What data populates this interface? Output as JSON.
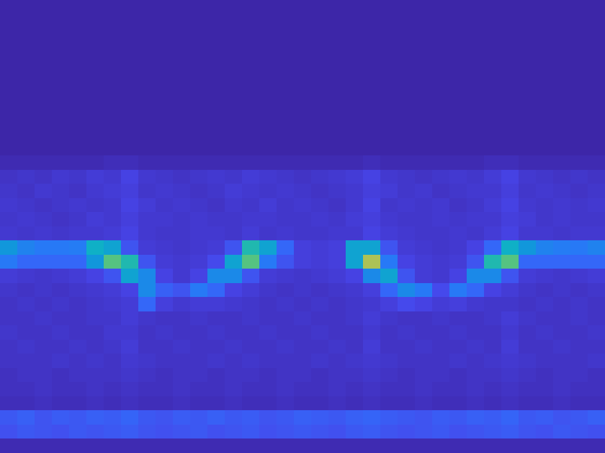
{
  "chart_data": {
    "type": "heatmap",
    "tick_labels": false,
    "zlim": [
      1,
      10
    ],
    "cells": [
      [
        1,
        1,
        1,
        1,
        1,
        1,
        1,
        1,
        1,
        1,
        1,
        1,
        1,
        1,
        1,
        1,
        1,
        1,
        1,
        1,
        1,
        1,
        1,
        1,
        1,
        1,
        1,
        1,
        1,
        1,
        1,
        1,
        1,
        1,
        1
      ],
      [
        1,
        1,
        1,
        1,
        1,
        1,
        1,
        1,
        1,
        1,
        1,
        1,
        1,
        1,
        1,
        1,
        1,
        1,
        1,
        1,
        1,
        1,
        1,
        1,
        1,
        1,
        1,
        1,
        1,
        1,
        1,
        1,
        1,
        1,
        1
      ],
      [
        1,
        1,
        1,
        1,
        1,
        1,
        1,
        1,
        1,
        1,
        1,
        1,
        1,
        1,
        1,
        1,
        1,
        1,
        1,
        1,
        1,
        1,
        1,
        1,
        1,
        1,
        1,
        1,
        1,
        1,
        1,
        1,
        1,
        1,
        1
      ],
      [
        1,
        1,
        1,
        1,
        1,
        1,
        1,
        1,
        1,
        1,
        1,
        1,
        1,
        1,
        1,
        1,
        1,
        1,
        1,
        1,
        1,
        1,
        1,
        1,
        1,
        1,
        1,
        1,
        1,
        1,
        1,
        1,
        1,
        1,
        1
      ],
      [
        1,
        1,
        1,
        1,
        1,
        1,
        1,
        1,
        1,
        1,
        1,
        1,
        1,
        1,
        1,
        1,
        1,
        1,
        1,
        1,
        1,
        1,
        1,
        1,
        1,
        1,
        1,
        1,
        1,
        1,
        1,
        1,
        1,
        1,
        1
      ],
      [
        1,
        1,
        1,
        1,
        1,
        1,
        1,
        1,
        1,
        1,
        1,
        1,
        1,
        1,
        1,
        1,
        1,
        1,
        1,
        1,
        1,
        1,
        1,
        1,
        1,
        1,
        1,
        1,
        1,
        1,
        1,
        1,
        1,
        1,
        1
      ],
      [
        1,
        1,
        1,
        1,
        1,
        1,
        1,
        1,
        1,
        1,
        1,
        1,
        1,
        1,
        1,
        1,
        1,
        1,
        1,
        1,
        1,
        1,
        1,
        1,
        1,
        1,
        1,
        1,
        1,
        1,
        1,
        1,
        1,
        1,
        1
      ],
      [
        1,
        1,
        1,
        1,
        1,
        1,
        1,
        1,
        1,
        1,
        1,
        1,
        1,
        1,
        1,
        1,
        1,
        1,
        1,
        1,
        1,
        1,
        1,
        1,
        1,
        1,
        1,
        1,
        1,
        1,
        1,
        1,
        1,
        1,
        1
      ],
      [
        1,
        1,
        1,
        1,
        1,
        1,
        1,
        1,
        1,
        1,
        1,
        1,
        1,
        1,
        1,
        1,
        1,
        1,
        1,
        1,
        1,
        1,
        1,
        1,
        1,
        1,
        1,
        1,
        1,
        1,
        1,
        1,
        1,
        1,
        1
      ],
      [
        1,
        1,
        1,
        1,
        1,
        1,
        1,
        1,
        1,
        1,
        1,
        1,
        1,
        1,
        1,
        1,
        1,
        1,
        1,
        1,
        1,
        1,
        1,
        1,
        1,
        1,
        1,
        1,
        1,
        1,
        1,
        1,
        1,
        1,
        1
      ],
      [
        1,
        1,
        1,
        1,
        1,
        1,
        1,
        1,
        1,
        1,
        1,
        1,
        1,
        1,
        1,
        1,
        1,
        1,
        1,
        1,
        1,
        1,
        1,
        1,
        1,
        1,
        1,
        1,
        1,
        1,
        1,
        1,
        1,
        1,
        1
      ],
      [
        1.2,
        1.2,
        1.2,
        1.2,
        1.2,
        1.2,
        1.3,
        1.3,
        1.2,
        1.2,
        1.2,
        1.2,
        1.2,
        1.2,
        1.2,
        1.2,
        1.2,
        1.2,
        1.2,
        1.2,
        1.2,
        1.3,
        1.2,
        1.2,
        1.2,
        1.2,
        1.2,
        1.2,
        1.3,
        1.3,
        1.2,
        1.2,
        1.2,
        1.2,
        1.2
      ],
      [
        1.5,
        1.6,
        1.5,
        1.7,
        1.6,
        1.8,
        1.7,
        2.0,
        1.7,
        1.6,
        1.5,
        1.6,
        1.7,
        1.6,
        1.8,
        1.7,
        1.6,
        1.5,
        1.6,
        1.7,
        1.8,
        2.0,
        1.7,
        1.6,
        1.5,
        1.6,
        1.7,
        1.6,
        1.8,
        2.0,
        1.7,
        1.6,
        1.5,
        1.6,
        1.5
      ],
      [
        1.6,
        1.5,
        1.7,
        1.6,
        1.5,
        1.7,
        1.8,
        1.9,
        1.6,
        1.7,
        1.6,
        1.5,
        1.6,
        1.8,
        1.7,
        1.6,
        1.7,
        1.6,
        1.5,
        1.6,
        1.7,
        1.9,
        1.8,
        1.6,
        1.7,
        1.5,
        1.6,
        1.7,
        1.7,
        1.9,
        1.6,
        1.7,
        1.6,
        1.5,
        1.6
      ],
      [
        1.7,
        1.6,
        1.5,
        1.6,
        1.7,
        1.6,
        1.7,
        2.0,
        1.8,
        1.6,
        1.7,
        1.6,
        1.5,
        1.7,
        1.6,
        1.8,
        1.6,
        1.7,
        1.6,
        1.5,
        1.7,
        2.0,
        1.6,
        1.7,
        1.6,
        1.7,
        1.5,
        1.6,
        1.8,
        2.0,
        1.7,
        1.6,
        1.7,
        1.6,
        1.7
      ],
      [
        1.6,
        1.7,
        1.6,
        1.5,
        1.6,
        1.8,
        1.7,
        1.9,
        1.7,
        1.7,
        1.6,
        1.7,
        1.6,
        1.6,
        1.7,
        1.7,
        1.6,
        1.6,
        1.7,
        1.6,
        1.8,
        1.9,
        1.7,
        1.6,
        1.6,
        1.7,
        1.6,
        1.7,
        1.7,
        1.9,
        1.8,
        1.6,
        1.7,
        1.6,
        1.6
      ],
      [
        1.7,
        1.6,
        1.7,
        1.6,
        1.7,
        1.7,
        1.8,
        2.0,
        1.7,
        1.6,
        1.6,
        1.7,
        1.7,
        1.6,
        1.8,
        1.6,
        1.7,
        1.6,
        1.6,
        1.7,
        1.7,
        2.0,
        1.8,
        1.7,
        1.6,
        1.6,
        1.7,
        1.6,
        1.8,
        2.0,
        1.7,
        1.7,
        1.6,
        1.7,
        1.7
      ],
      [
        4.5,
        3.8,
        3.5,
        3.5,
        3.6,
        5.5,
        5.0,
        2.5,
        1.8,
        1.7,
        1.6,
        1.7,
        1.8,
        2.5,
        6.0,
        5.0,
        3.0,
        1.9,
        1.8,
        1.9,
        5.0,
        5.0,
        2.5,
        1.8,
        1.7,
        1.6,
        1.7,
        2.0,
        3.0,
        5.5,
        4.5,
        3.8,
        3.6,
        3.5,
        3.8
      ],
      [
        3.5,
        3.0,
        3.0,
        3.0,
        3.0,
        4.5,
        7.0,
        6.0,
        2.5,
        1.8,
        1.7,
        1.8,
        2.2,
        5.0,
        7.0,
        3.5,
        2.5,
        1.9,
        1.8,
        1.9,
        5.0,
        8.0,
        3.5,
        2.0,
        1.8,
        1.7,
        1.8,
        2.5,
        6.0,
        7.0,
        3.0,
        3.0,
        3.0,
        3.0,
        3.0
      ],
      [
        1.8,
        1.7,
        1.6,
        1.7,
        1.8,
        2.0,
        2.5,
        5.0,
        4.0,
        2.0,
        1.7,
        2.0,
        4.0,
        4.0,
        2.5,
        1.8,
        1.7,
        1.6,
        1.7,
        1.8,
        2.0,
        4.0,
        5.0,
        2.5,
        1.8,
        1.7,
        2.0,
        4.0,
        4.0,
        2.5,
        1.8,
        1.7,
        1.6,
        1.7,
        1.8
      ],
      [
        1.6,
        1.5,
        1.6,
        1.5,
        1.6,
        1.7,
        1.8,
        2.0,
        4.0,
        2.8,
        2.5,
        3.5,
        3.0,
        2.0,
        1.8,
        1.6,
        1.5,
        1.6,
        1.5,
        1.6,
        1.7,
        1.9,
        3.0,
        4.0,
        3.5,
        2.2,
        3.5,
        3.0,
        2.0,
        1.8,
        1.6,
        1.5,
        1.6,
        1.5,
        1.6
      ],
      [
        1.5,
        1.6,
        1.5,
        1.6,
        1.5,
        1.6,
        1.7,
        1.8,
        3.0,
        1.9,
        1.7,
        1.8,
        1.8,
        1.7,
        1.6,
        1.5,
        1.6,
        1.5,
        1.6,
        1.5,
        1.6,
        1.7,
        1.9,
        2.2,
        2.0,
        1.8,
        1.9,
        1.7,
        1.6,
        1.6,
        1.5,
        1.6,
        1.5,
        1.6,
        1.5
      ],
      [
        1.5,
        1.5,
        1.6,
        1.5,
        1.5,
        1.6,
        1.6,
        1.8,
        1.6,
        1.5,
        1.5,
        1.6,
        1.5,
        1.5,
        1.6,
        1.5,
        1.5,
        1.6,
        1.5,
        1.5,
        1.6,
        1.8,
        1.6,
        1.5,
        1.5,
        1.6,
        1.5,
        1.5,
        1.6,
        1.8,
        1.6,
        1.5,
        1.5,
        1.6,
        1.5
      ],
      [
        1.6,
        1.5,
        1.5,
        1.6,
        1.5,
        1.5,
        1.7,
        1.7,
        1.5,
        1.6,
        1.5,
        1.5,
        1.6,
        1.5,
        1.5,
        1.6,
        1.5,
        1.5,
        1.6,
        1.5,
        1.5,
        1.7,
        1.5,
        1.6,
        1.5,
        1.5,
        1.6,
        1.5,
        1.5,
        1.7,
        1.5,
        1.6,
        1.5,
        1.5,
        1.6
      ],
      [
        1.5,
        1.6,
        1.5,
        1.5,
        1.6,
        1.5,
        1.6,
        1.8,
        1.5,
        1.5,
        1.6,
        1.5,
        1.5,
        1.6,
        1.5,
        1.5,
        1.6,
        1.5,
        1.5,
        1.6,
        1.5,
        1.8,
        1.5,
        1.5,
        1.6,
        1.5,
        1.5,
        1.6,
        1.5,
        1.8,
        1.5,
        1.5,
        1.6,
        1.5,
        1.5
      ],
      [
        1.5,
        1.5,
        1.5,
        1.6,
        1.5,
        1.6,
        1.5,
        1.7,
        1.6,
        1.5,
        1.5,
        1.5,
        1.6,
        1.5,
        1.6,
        1.5,
        1.5,
        1.5,
        1.6,
        1.5,
        1.6,
        1.7,
        1.6,
        1.5,
        1.5,
        1.5,
        1.6,
        1.5,
        1.6,
        1.7,
        1.6,
        1.5,
        1.5,
        1.5,
        1.6
      ],
      [
        1.4,
        1.5,
        1.5,
        1.4,
        1.5,
        1.5,
        1.5,
        1.6,
        1.5,
        1.4,
        1.5,
        1.5,
        1.4,
        1.5,
        1.5,
        1.4,
        1.5,
        1.5,
        1.4,
        1.5,
        1.5,
        1.6,
        1.5,
        1.4,
        1.5,
        1.5,
        1.4,
        1.5,
        1.5,
        1.6,
        1.5,
        1.4,
        1.5,
        1.5,
        1.4
      ],
      [
        1.4,
        1.4,
        1.5,
        1.4,
        1.4,
        1.5,
        1.4,
        1.5,
        1.4,
        1.4,
        1.5,
        1.4,
        1.4,
        1.5,
        1.4,
        1.4,
        1.5,
        1.4,
        1.4,
        1.5,
        1.4,
        1.5,
        1.4,
        1.4,
        1.5,
        1.4,
        1.4,
        1.5,
        1.4,
        1.5,
        1.4,
        1.4,
        1.5,
        1.4,
        1.4
      ],
      [
        1.3,
        1.3,
        1.4,
        1.3,
        1.3,
        1.4,
        1.3,
        1.4,
        1.3,
        1.3,
        1.4,
        1.3,
        1.3,
        1.4,
        1.3,
        1.3,
        1.4,
        1.3,
        1.3,
        1.4,
        1.3,
        1.4,
        1.3,
        1.3,
        1.4,
        1.3,
        1.3,
        1.4,
        1.3,
        1.4,
        1.3,
        1.3,
        1.4,
        1.3,
        1.3
      ],
      [
        2.6,
        2.8,
        2.5,
        2.7,
        2.6,
        2.8,
        2.7,
        2.9,
        2.6,
        2.5,
        2.7,
        2.6,
        2.8,
        2.6,
        2.7,
        2.5,
        2.6,
        2.8,
        2.7,
        2.6,
        2.8,
        2.9,
        2.7,
        2.6,
        2.5,
        2.7,
        2.6,
        2.8,
        2.7,
        2.9,
        2.6,
        2.7,
        2.5,
        2.6,
        2.8
      ],
      [
        2.4,
        2.6,
        2.5,
        2.4,
        2.6,
        2.5,
        2.6,
        2.7,
        2.5,
        2.4,
        2.5,
        2.6,
        2.4,
        2.5,
        2.6,
        2.4,
        2.5,
        2.6,
        2.5,
        2.4,
        2.6,
        2.7,
        2.5,
        2.4,
        2.5,
        2.6,
        2.4,
        2.5,
        2.6,
        2.7,
        2.5,
        2.4,
        2.6,
        2.5,
        2.4
      ],
      [
        1.2,
        1.2,
        1.2,
        1.2,
        1.2,
        1.2,
        1.2,
        1.2,
        1.2,
        1.2,
        1.2,
        1.2,
        1.2,
        1.2,
        1.2,
        1.2,
        1.2,
        1.2,
        1.2,
        1.2,
        1.2,
        1.2,
        1.2,
        1.2,
        1.2,
        1.2,
        1.2,
        1.2,
        1.2,
        1.2,
        1.2,
        1.2,
        1.2,
        1.2,
        1.2
      ]
    ]
  }
}
